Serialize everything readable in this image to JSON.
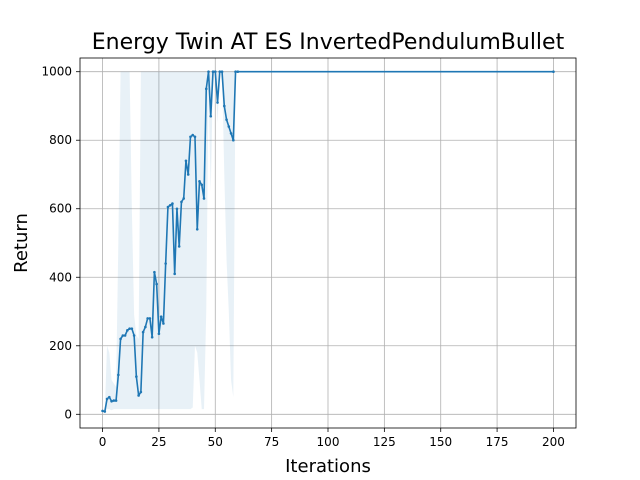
{
  "chart_data": {
    "type": "line",
    "title": "Energy Twin AT ES InvertedPendulumBullet",
    "xlabel": "Iterations",
    "ylabel": "Return",
    "xlim": [
      -10,
      210
    ],
    "ylim": [
      -40,
      1040
    ],
    "xticks": [
      0,
      25,
      50,
      75,
      100,
      125,
      150,
      175,
      200
    ],
    "yticks": [
      0,
      200,
      400,
      600,
      800,
      1000
    ],
    "grid": true,
    "colors": {
      "line": "#1f77b4",
      "band": "#1f77b4"
    },
    "series": [
      {
        "x": [
          0,
          1,
          2,
          3,
          4,
          5,
          6,
          7,
          8,
          9,
          10,
          11,
          12,
          13,
          14,
          15,
          16,
          17,
          18,
          19,
          20,
          21,
          22,
          23,
          24,
          25,
          26,
          27,
          28,
          29,
          30,
          31,
          32,
          33,
          34,
          35,
          36,
          37,
          38,
          39,
          40,
          41,
          42,
          43,
          44,
          45,
          46,
          47,
          48,
          49,
          50,
          51,
          52,
          53,
          54,
          55,
          56,
          57,
          58,
          59,
          60,
          200
        ],
        "y": [
          10,
          8,
          45,
          50,
          38,
          40,
          40,
          115,
          220,
          230,
          230,
          245,
          250,
          250,
          230,
          110,
          55,
          65,
          240,
          255,
          280,
          280,
          225,
          415,
          380,
          235,
          285,
          265,
          440,
          605,
          610,
          615,
          410,
          600,
          490,
          620,
          630,
          740,
          700,
          810,
          815,
          810,
          540,
          680,
          670,
          630,
          950,
          1000,
          870,
          1000,
          1000,
          910,
          1000,
          1000,
          900,
          860,
          840,
          820,
          800,
          1000,
          1000,
          1000
        ],
        "lower": [
          10,
          8,
          15,
          15,
          12,
          15,
          15,
          15,
          15,
          15,
          15,
          15,
          15,
          15,
          15,
          15,
          15,
          15,
          15,
          15,
          15,
          15,
          15,
          15,
          15,
          15,
          15,
          15,
          15,
          15,
          15,
          15,
          15,
          15,
          15,
          15,
          15,
          15,
          15,
          15,
          20,
          200,
          180,
          100,
          15,
          15,
          300,
          940,
          650,
          1000,
          1000,
          850,
          1000,
          1000,
          700,
          450,
          300,
          100,
          50,
          1000,
          1000,
          1000
        ],
        "upper": [
          10,
          8,
          200,
          180,
          100,
          90,
          80,
          500,
          1000,
          1000,
          1000,
          1000,
          1000,
          600,
          290,
          230,
          220,
          1000,
          1000,
          1000,
          1000,
          1000,
          1000,
          1000,
          1000,
          1000,
          1000,
          1000,
          1000,
          1000,
          1000,
          1000,
          1000,
          1000,
          1000,
          1000,
          1000,
          1000,
          1000,
          1000,
          1000,
          1000,
          1000,
          1000,
          1000,
          1000,
          1000,
          1000,
          1000,
          1000,
          1000,
          1000,
          1000,
          1000,
          1000,
          1000,
          1000,
          1000,
          1000,
          1000,
          1000,
          1000
        ]
      }
    ]
  }
}
